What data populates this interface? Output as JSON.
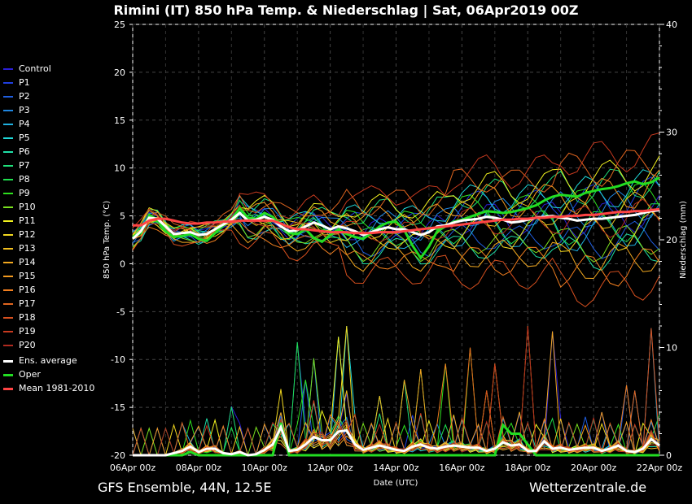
{
  "title": "Rimini  (IT)  850 hPa Temp. & Niederschlag | Sat, 06Apr2019 00Z",
  "footer_left": "GFS Ensemble, 44N, 12.5E",
  "footer_right": "Wetterzentrale.de",
  "colors": {
    "background": "#000000",
    "grid": "#444444",
    "ens_average": "#ffffff",
    "oper": "#22dd22",
    "mean": "#ff4444"
  },
  "chart_data": {
    "type": "line",
    "xlabel": "Date (UTC)",
    "ylabel_left": "850 hPa Temp. (°C)",
    "ylabel_right": "Niederschlag (mm)",
    "ylim_left": [
      -20,
      25
    ],
    "ylim_right": [
      0,
      40
    ],
    "yticks_left": [
      "25",
      "20",
      "15",
      "10",
      "5",
      "0",
      "-5",
      "-10",
      "-15",
      "-20"
    ],
    "yticks_right": [
      "40",
      "30",
      "20",
      "10",
      "0"
    ],
    "xticks": [
      "06Apr 00z",
      "08Apr 00z",
      "10Apr 00z",
      "12Apr 00z",
      "14Apr 00z",
      "16Apr 00z",
      "18Apr 00z",
      "20Apr 00z",
      "22Apr 00z"
    ],
    "x_days": [
      0,
      16
    ],
    "grid": true,
    "legend_position": "left-outside",
    "series": [
      {
        "name": "Control",
        "color": "#2b1fd6"
      },
      {
        "name": "P1",
        "color": "#1f3fe0"
      },
      {
        "name": "P2",
        "color": "#1f5ee0"
      },
      {
        "name": "P3",
        "color": "#1f86e0"
      },
      {
        "name": "P4",
        "color": "#1fb1e0"
      },
      {
        "name": "P5",
        "color": "#1fd8d8"
      },
      {
        "name": "P6",
        "color": "#1fe0a8"
      },
      {
        "name": "P7",
        "color": "#1fe07a"
      },
      {
        "name": "P8",
        "color": "#1fe04e"
      },
      {
        "name": "P9",
        "color": "#2ee01f"
      },
      {
        "name": "P10",
        "color": "#7ae01f"
      },
      {
        "name": "P11",
        "color": "#f2f21f"
      },
      {
        "name": "P12",
        "color": "#f2d81f"
      },
      {
        "name": "P13",
        "color": "#f2c01f"
      },
      {
        "name": "P14",
        "color": "#f2a81f"
      },
      {
        "name": "P15",
        "color": "#f29a1f"
      },
      {
        "name": "P16",
        "color": "#f27f1f"
      },
      {
        "name": "P17",
        "color": "#e0651f"
      },
      {
        "name": "P18",
        "color": "#d8501f"
      },
      {
        "name": "P19",
        "color": "#c83a1f"
      },
      {
        "name": "P20",
        "color": "#b02a1f"
      },
      {
        "name": "Ens. average",
        "color": "#ffffff"
      },
      {
        "name": "Oper",
        "color": "#22dd22"
      },
      {
        "name": "Mean 1981-2010",
        "color": "#ff4444"
      }
    ],
    "temperature": {
      "ens_average": [
        2.6,
        3.4,
        4.8,
        4.7,
        3.9,
        3.1,
        3.2,
        3.3,
        3.0,
        3.1,
        3.6,
        4.1,
        4.6,
        5.3,
        4.5,
        4.6,
        4.9,
        4.6,
        3.9,
        3.4,
        3.5,
        3.9,
        4.3,
        4.0,
        3.6,
        3.9,
        3.7,
        3.4,
        3.0,
        3.3,
        3.6,
        3.8,
        3.6,
        3.6,
        3.3,
        3.0,
        3.3,
        3.9,
        4.0,
        4.3,
        4.5,
        4.6,
        4.7,
        4.9,
        4.8,
        4.6,
        4.3,
        4.4,
        4.6,
        4.8,
        4.9,
        5.0,
        4.8,
        4.7,
        4.5,
        4.6,
        4.7,
        4.7,
        4.8,
        4.9,
        5.0,
        5.1,
        5.3,
        5.5,
        5.6
      ],
      "oper": [
        2.8,
        3.2,
        5.1,
        4.6,
        3.4,
        2.8,
        2.9,
        3.1,
        2.6,
        2.4,
        3.2,
        4.0,
        4.6,
        5.8,
        4.8,
        4.7,
        5.3,
        4.9,
        4.0,
        3.2,
        3.1,
        3.6,
        2.7,
        2.3,
        3.0,
        3.6,
        3.1,
        2.8,
        2.6,
        3.2,
        3.9,
        4.3,
        4.4,
        3.5,
        1.9,
        0.6,
        1.8,
        3.4,
        3.9,
        4.4,
        4.6,
        4.9,
        5.2,
        5.5,
        5.4,
        5.3,
        5.4,
        5.6,
        5.8,
        6.1,
        6.6,
        7.0,
        7.2,
        7.1,
        7.0,
        7.4,
        7.6,
        7.8,
        7.9,
        8.1,
        8.4,
        8.6,
        8.3,
        8.5,
        9.0
      ],
      "mean": [
        4.0,
        4.0,
        4.5,
        4.7,
        4.7,
        4.5,
        4.3,
        4.2,
        4.2,
        4.3,
        4.3,
        4.4,
        4.4,
        4.5,
        4.5,
        4.5,
        4.5,
        4.5,
        4.2,
        3.8,
        3.6,
        3.6,
        3.5,
        3.4,
        3.3,
        3.3,
        3.3,
        3.2,
        3.2,
        3.2,
        3.3,
        3.3,
        3.3,
        3.4,
        3.5,
        3.6,
        3.7,
        3.8,
        3.9,
        4.0,
        4.1,
        4.2,
        4.3,
        4.4,
        4.5,
        4.6,
        4.6,
        4.7,
        4.7,
        4.8,
        4.8,
        4.9,
        4.9,
        5.0,
        5.0,
        5.1,
        5.1,
        5.2,
        5.3,
        5.4,
        5.4,
        5.5,
        5.5,
        5.6,
        5.7
      ],
      "member_offsets": [
        0.0,
        0.6,
        -0.8,
        0.3,
        -0.5,
        0.9,
        -1.2,
        1.1,
        -0.3,
        0.5,
        -0.9,
        1.4,
        -0.6,
        0.2,
        -1.5,
        0.8,
        -1.8,
        1.7,
        -2.4,
        2.1,
        -0.1
      ],
      "member_spread_growth": [
        0.4,
        1.2,
        2.2,
        3.0,
        3.8
      ]
    },
    "precipitation_mm": {
      "ens_average": [
        0,
        0,
        0,
        0,
        0,
        0.2,
        0.4,
        0.8,
        0.3,
        0.6,
        0.6,
        0.2,
        0.1,
        0.3,
        0.0,
        0.1,
        0.5,
        1.0,
        2.6,
        0.4,
        0.5,
        1.0,
        1.7,
        1.4,
        1.4,
        2.2,
        2.3,
        1.0,
        0.5,
        0.7,
        0.9,
        0.7,
        0.5,
        0.4,
        0.8,
        1.0,
        0.7,
        0.6,
        0.8,
        0.9,
        0.8,
        0.7,
        0.7,
        0.4,
        0.6,
        1.2,
        0.9,
        1.0,
        0.4,
        0.4,
        1.3,
        0.6,
        0.7,
        0.5,
        0.6,
        0.7,
        0.7,
        0.4,
        0.6,
        0.9,
        0.4,
        0.3,
        0.6,
        1.5,
        0.9
      ],
      "oper": [
        0,
        0,
        0,
        0,
        0,
        0,
        0,
        0.3,
        0,
        0,
        0,
        0,
        0,
        0,
        0,
        0,
        0,
        0,
        3.0,
        0,
        0,
        0,
        0,
        0,
        0,
        0,
        0,
        0,
        0,
        0,
        0,
        0,
        0,
        0,
        0,
        0,
        0,
        0,
        0,
        0,
        0,
        0,
        0,
        0,
        0,
        2.8,
        2.0,
        2.0,
        1.0,
        0,
        0,
        0,
        0,
        0,
        0,
        0,
        0,
        0,
        0,
        0,
        0,
        0,
        0,
        0,
        0
      ],
      "member_peaks": [
        [
          12,
          4.5
        ],
        [
          20,
          10.5
        ],
        [
          21,
          7.0
        ],
        [
          22,
          9.0
        ],
        [
          25,
          11.0
        ],
        [
          26,
          12.0
        ],
        [
          30,
          5.5
        ],
        [
          33,
          7.0
        ],
        [
          35,
          8.0
        ],
        [
          38,
          8.5
        ],
        [
          41,
          10.0
        ],
        [
          43,
          6.0
        ],
        [
          44,
          8.5
        ],
        [
          48,
          12.0
        ],
        [
          51,
          11.5
        ],
        [
          57,
          4.0
        ],
        [
          60,
          6.5
        ],
        [
          61,
          6.0
        ],
        [
          63,
          11.8
        ]
      ]
    }
  },
  "legend": {
    "items": [
      "Control",
      "P1",
      "P2",
      "P3",
      "P4",
      "P5",
      "P6",
      "P7",
      "P8",
      "P9",
      "P10",
      "P11",
      "P12",
      "P13",
      "P14",
      "P15",
      "P16",
      "P17",
      "P18",
      "P19",
      "P20"
    ],
    "ens_average": "Ens. average",
    "oper": "Oper",
    "mean": "Mean 1981-2010"
  }
}
